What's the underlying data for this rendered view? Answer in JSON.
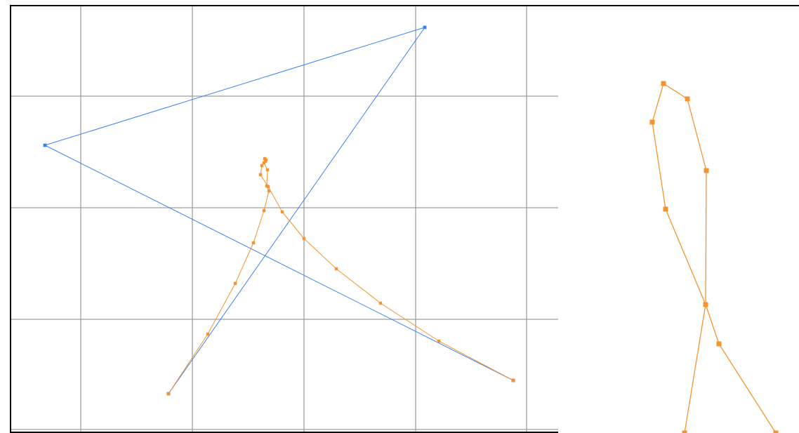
{
  "colors": {
    "background": "#ffffff",
    "grid": "#9e9e9e",
    "frame": "#000000",
    "blue_path": "#3b82f6",
    "orange_path": "#f5932f"
  },
  "canvas": {
    "grid": true,
    "paths": [
      {
        "color_key": "blue_path",
        "point_count": 4,
        "shape": "zigzag"
      },
      {
        "color_key": "orange_path",
        "point_count": 18,
        "shape": "loop"
      }
    ]
  },
  "zoom_view": {
    "shows": "orange_path_loop_detail"
  }
}
